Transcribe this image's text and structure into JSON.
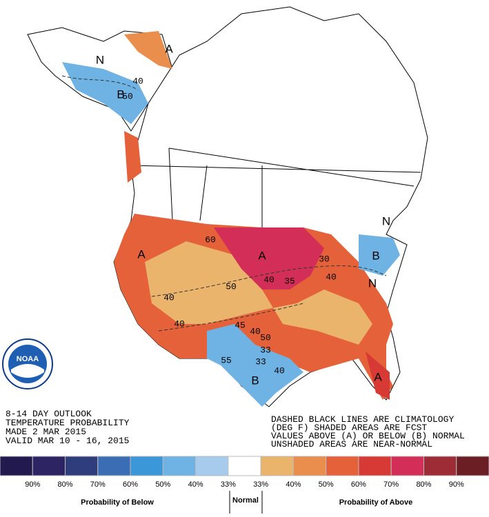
{
  "outlook": {
    "lines": [
      "8-14 DAY OUTLOOK",
      "TEMPERATURE PROBABILITY",
      "MADE  2 MAR 2015",
      "VALID  MAR 10 - 16, 2015"
    ]
  },
  "notes": [
    "DASHED BLACK LINES ARE CLIMATOLOGY",
    "(DEG F) SHADED AREAS ARE FCST",
    "VALUES ABOVE (A) OR BELOW (B) NORMAL",
    "UNSHADED AREAS ARE NEAR-NORMAL"
  ],
  "logo": "NOAA",
  "map_labels": [
    "N",
    "B",
    "A",
    "40",
    "50",
    "A",
    "60",
    "A",
    "50",
    "40",
    "35",
    "40",
    "30",
    "40",
    "40",
    "45",
    "40",
    "50",
    "33",
    "33",
    "55",
    "40",
    "B",
    "A",
    "N",
    "B",
    "N"
  ],
  "legend": {
    "colors": [
      "#221a4f",
      "#2d2563",
      "#2f3d7c",
      "#3a6db4",
      "#3c97d8",
      "#6fb3e4",
      "#a6cbec",
      "#ffffff",
      "#eab46c",
      "#e98e4c",
      "#e4613a",
      "#d73a34",
      "#d22e58",
      "#9d2c36",
      "#6b1f24"
    ],
    "ticks": [
      "90%",
      "80%",
      "70%",
      "60%",
      "50%",
      "40%",
      "33%",
      "33%",
      "40%",
      "50%",
      "60%",
      "70%",
      "80%",
      "90%"
    ],
    "below_label": "Probability of Below",
    "normal_label": "Normal",
    "above_label": "Probability of Above"
  }
}
